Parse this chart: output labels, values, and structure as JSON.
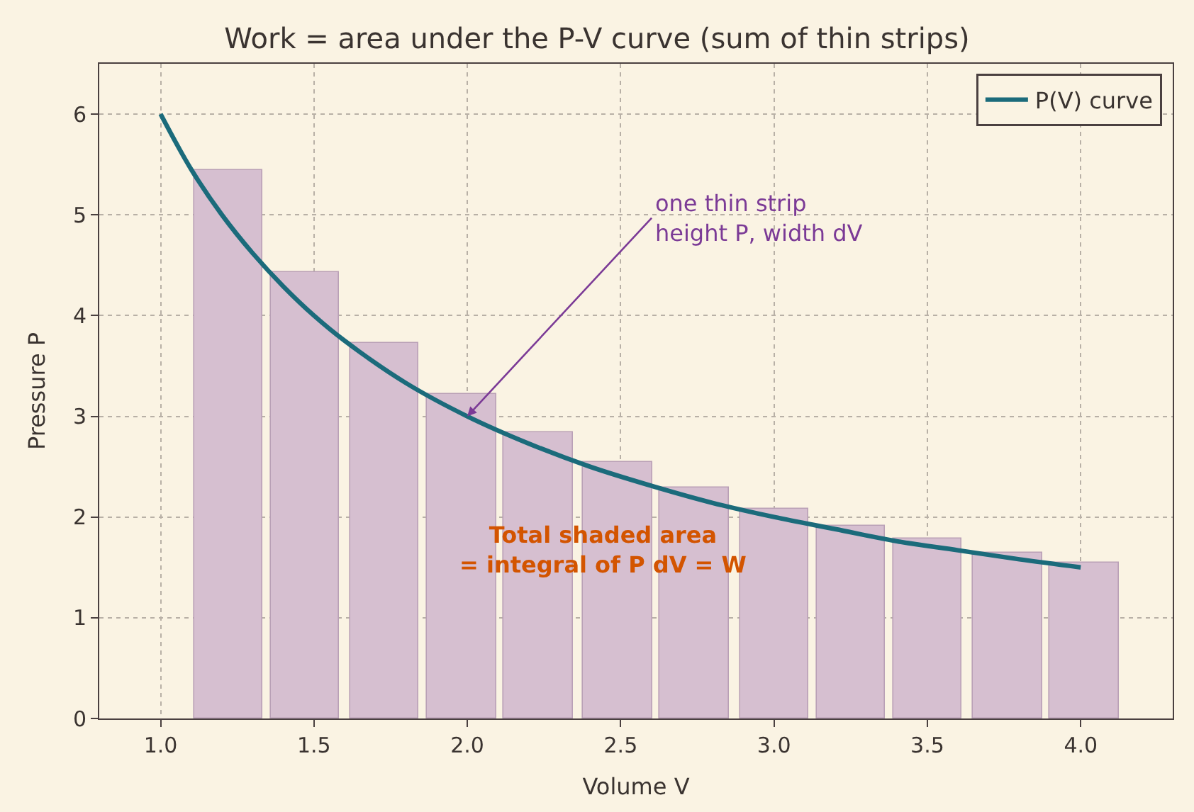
{
  "chart_data": {
    "type": "bar",
    "title": "Work = area under the P-V curve (sum of thin strips)",
    "xlabel": "Volume V",
    "ylabel": "Pressure P",
    "x": [
      1.22,
      1.47,
      1.73,
      1.98,
      2.23,
      2.49,
      2.74,
      3.0,
      3.25,
      3.5,
      3.76,
      4.01
    ],
    "series": [
      {
        "color": "#d6bfd0",
        "values": [
          5.45,
          4.43,
          3.73,
          3.22,
          2.84,
          2.54,
          2.29,
          2.08,
          1.92,
          1.78,
          1.65,
          1.55
        ]
      },
      {
        "type": "line",
        "name": "P(V) curve",
        "color": "#1b6b7b",
        "x": [
          1.0,
          1.1,
          1.2,
          1.3,
          1.4,
          1.5,
          1.6,
          1.8,
          2.0,
          2.2,
          2.4,
          2.6,
          2.8,
          3.0,
          3.2,
          3.4,
          3.6,
          3.8,
          4.0
        ],
        "values": [
          6.0,
          5.45,
          5.0,
          4.62,
          4.29,
          4.0,
          3.75,
          3.33,
          3.0,
          2.73,
          2.5,
          2.31,
          2.14,
          2.0,
          1.88,
          1.76,
          1.67,
          1.58,
          1.5
        ]
      }
    ],
    "xlim": [
      0.8,
      4.3
    ],
    "xticks": [
      {
        "value": 1,
        "label": "1.0"
      },
      {
        "value": 1.5,
        "label": "1.5"
      },
      {
        "value": 2,
        "label": "2.0"
      },
      {
        "value": 2.5,
        "label": "2.5"
      },
      {
        "value": 3,
        "label": "3.0"
      },
      {
        "value": 3.5,
        "label": "3.5"
      },
      {
        "value": 4,
        "label": "4.0"
      }
    ],
    "ylim": [
      0,
      6.5
    ],
    "yticks": [
      0,
      1,
      2,
      3,
      4,
      5,
      6
    ],
    "annotations": [
      {
        "text": "one thin strip\nheight P, width dV",
        "x": 2.0,
        "y": 3.0
      },
      "Total shaded area\n= integral of P dV = W"
    ],
    "grid": true,
    "legend": "top right",
    "line_style": "solid",
    "marker": "none"
  }
}
